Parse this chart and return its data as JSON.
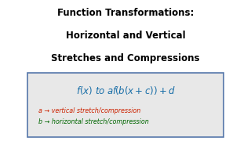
{
  "title_line1": "Function Transformations:",
  "title_line2": "Horizontal and Vertical",
  "title_line3": "Stretches and Compressions",
  "title_color": "#000000",
  "title_fontsize": 8.5,
  "box_bg_color": "#e8e8e8",
  "box_border_color": "#5577aa",
  "formula_color": "#1a6fa8",
  "annotation1_color": "#cc2200",
  "annotation2_color": "#006600",
  "annotation1_text": "a → vertical stretch/compression",
  "annotation2_text": "b → horizontal stretch/compression",
  "annotation_fontsize": 5.8,
  "formula_fontsize": 8.5,
  "bg_color": "#ffffff"
}
